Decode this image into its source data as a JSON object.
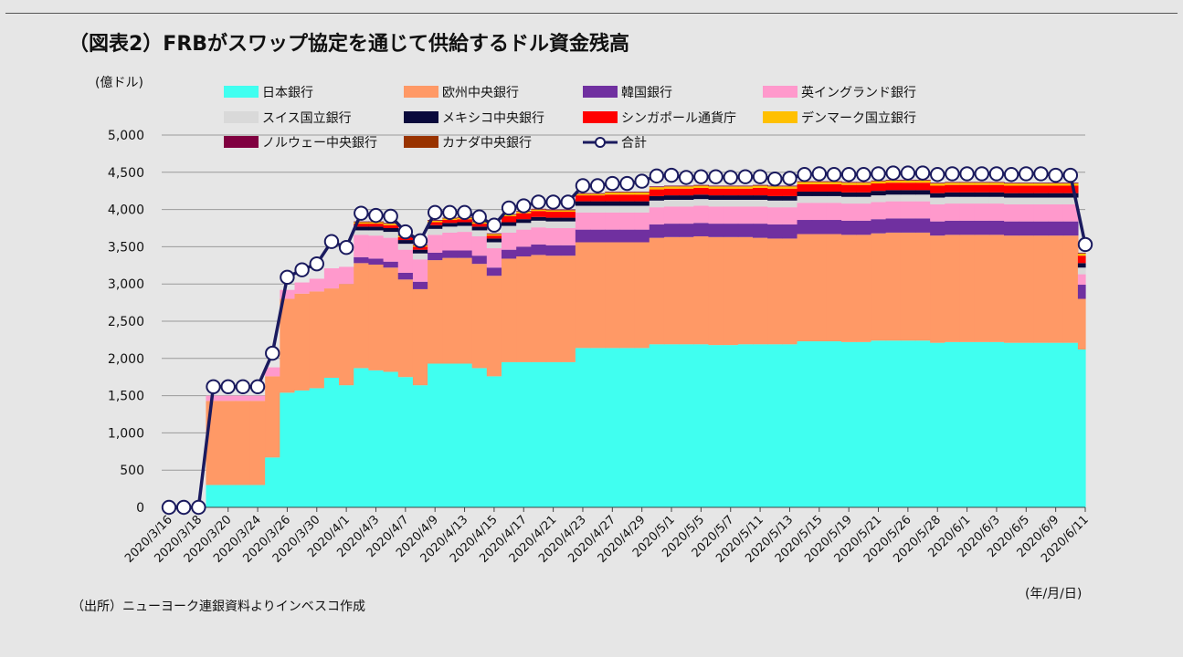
{
  "title": "（図表2）FRBがスワップ協定を通じて供給するドル資金残高",
  "source": "（出所）ニューヨーク連銀資料よりインベスコ作成",
  "chart_data": {
    "type": "area",
    "stacked": true,
    "ylabel": "(億ドル)",
    "xunit": "(年/月/日)",
    "ylim": [
      0,
      5000
    ],
    "yticks": [
      0,
      500,
      1000,
      1500,
      2000,
      2500,
      3000,
      3500,
      4000,
      4500,
      5000
    ],
    "ytick_labels": [
      "0",
      "500",
      "1,000",
      "1,500",
      "2,000",
      "2,500",
      "3,000",
      "3,500",
      "4,000",
      "4,500",
      "5,000"
    ],
    "grid": true,
    "legend_position": "top",
    "x": [
      "2020/3/16",
      "2020/3/17",
      "2020/3/18",
      "2020/3/19",
      "2020/3/20",
      "2020/3/23",
      "2020/3/24",
      "2020/3/25",
      "2020/3/26",
      "2020/3/27",
      "2020/3/30",
      "2020/3/31",
      "2020/4/1",
      "2020/4/2",
      "2020/4/3",
      "2020/4/6",
      "2020/4/7",
      "2020/4/8",
      "2020/4/9",
      "2020/4/10",
      "2020/4/13",
      "2020/4/14",
      "2020/4/15",
      "2020/4/16",
      "2020/4/17",
      "2020/4/20",
      "2020/4/21",
      "2020/4/22",
      "2020/4/23",
      "2020/4/24",
      "2020/4/27",
      "2020/4/28",
      "2020/4/29",
      "2020/4/30",
      "2020/5/1",
      "2020/5/4",
      "2020/5/5",
      "2020/5/6",
      "2020/5/7",
      "2020/5/8",
      "2020/5/11",
      "2020/5/12",
      "2020/5/13",
      "2020/5/14",
      "2020/5/15",
      "2020/5/18",
      "2020/5/19",
      "2020/5/20",
      "2020/5/21",
      "2020/5/22",
      "2020/5/26",
      "2020/5/27",
      "2020/5/28",
      "2020/5/29",
      "2020/6/1",
      "2020/6/2",
      "2020/6/3",
      "2020/6/4",
      "2020/6/5",
      "2020/6/8",
      "2020/6/9",
      "2020/6/10",
      "2020/6/11"
    ],
    "xtick_labels": [
      "2020/3/16",
      "2020/3/18",
      "2020/3/20",
      "2020/3/24",
      "2020/3/26",
      "2020/3/30",
      "2020/4/1",
      "2020/4/3",
      "2020/4/7",
      "2020/4/9",
      "2020/4/13",
      "2020/4/15",
      "2020/4/17",
      "2020/4/21",
      "2020/4/23",
      "2020/4/27",
      "2020/4/29",
      "2020/5/1",
      "2020/5/5",
      "2020/5/7",
      "2020/5/11",
      "2020/5/13",
      "2020/5/15",
      "2020/5/19",
      "2020/5/21",
      "2020/5/26",
      "2020/5/28",
      "2020/6/1",
      "2020/6/3",
      "2020/6/5",
      "2020/6/9",
      "2020/6/11"
    ],
    "series": [
      {
        "name": "日本銀行",
        "color": "#40fff0",
        "values": [
          0,
          0,
          0,
          300,
          300,
          300,
          300,
          670,
          1540,
          1570,
          1600,
          1740,
          1640,
          1870,
          1840,
          1820,
          1750,
          1640,
          1930,
          1930,
          1930,
          1870,
          1760,
          1950,
          1950,
          1950,
          1950,
          1950,
          2140,
          2140,
          2140,
          2140,
          2140,
          2190,
          2190,
          2190,
          2190,
          2180,
          2180,
          2190,
          2190,
          2190,
          2190,
          2230,
          2230,
          2230,
          2220,
          2220,
          2240,
          2240,
          2240,
          2240,
          2210,
          2220,
          2220,
          2220,
          2220,
          2210,
          2210,
          2210,
          2210,
          2210,
          2120
        ]
      },
      {
        "name": "欧州中央銀行",
        "color": "#ff9966",
        "values": [
          0,
          0,
          0,
          1130,
          1130,
          1130,
          1130,
          1090,
          1260,
          1300,
          1300,
          1200,
          1360,
          1410,
          1420,
          1400,
          1310,
          1290,
          1390,
          1420,
          1420,
          1400,
          1350,
          1390,
          1420,
          1440,
          1430,
          1430,
          1420,
          1420,
          1420,
          1420,
          1420,
          1430,
          1440,
          1440,
          1450,
          1450,
          1450,
          1440,
          1430,
          1420,
          1420,
          1440,
          1440,
          1440,
          1440,
          1440,
          1440,
          1450,
          1450,
          1450,
          1440,
          1440,
          1440,
          1440,
          1440,
          1440,
          1440,
          1440,
          1440,
          1440,
          680
        ]
      },
      {
        "name": "韓国銀行",
        "color": "#7030a0",
        "values": [
          0,
          0,
          0,
          0,
          0,
          0,
          0,
          0,
          0,
          0,
          0,
          0,
          0,
          80,
          80,
          80,
          90,
          100,
          100,
          100,
          100,
          110,
          110,
          120,
          130,
          140,
          140,
          140,
          170,
          170,
          170,
          170,
          170,
          180,
          180,
          180,
          180,
          180,
          180,
          180,
          190,
          190,
          190,
          190,
          190,
          190,
          190,
          190,
          190,
          190,
          190,
          190,
          190,
          190,
          190,
          190,
          190,
          190,
          190,
          190,
          190,
          190,
          190
        ]
      },
      {
        "name": "英イングランド銀行",
        "color": "#ff99cc",
        "values": [
          0,
          0,
          0,
          70,
          70,
          70,
          70,
          120,
          120,
          150,
          170,
          270,
          230,
          300,
          310,
          320,
          310,
          300,
          240,
          240,
          250,
          260,
          260,
          230,
          230,
          230,
          230,
          230,
          230,
          230,
          230,
          230,
          230,
          230,
          230,
          230,
          230,
          230,
          230,
          230,
          230,
          230,
          230,
          230,
          230,
          230,
          230,
          230,
          230,
          230,
          230,
          230,
          230,
          230,
          230,
          230,
          230,
          230,
          230,
          230,
          230,
          230,
          140
        ]
      },
      {
        "name": "スイス国立銀行",
        "color": "#d9d9d9",
        "values": [
          0,
          0,
          0,
          0,
          0,
          0,
          0,
          0,
          0,
          0,
          0,
          0,
          0,
          60,
          70,
          80,
          80,
          80,
          80,
          80,
          80,
          80,
          80,
          90,
          90,
          90,
          90,
          90,
          90,
          90,
          90,
          90,
          90,
          90,
          90,
          90,
          90,
          90,
          90,
          90,
          90,
          90,
          90,
          90,
          90,
          90,
          90,
          90,
          90,
          90,
          90,
          90,
          90,
          90,
          90,
          90,
          90,
          90,
          90,
          90,
          90,
          90,
          90
        ]
      },
      {
        "name": "メキシコ中央銀行",
        "color": "#0a0a3c",
        "values": [
          0,
          0,
          0,
          0,
          0,
          0,
          0,
          0,
          0,
          0,
          0,
          0,
          0,
          50,
          50,
          50,
          50,
          50,
          50,
          50,
          50,
          50,
          50,
          50,
          50,
          50,
          50,
          50,
          60,
          60,
          60,
          60,
          60,
          60,
          60,
          60,
          60,
          60,
          60,
          60,
          60,
          60,
          60,
          60,
          60,
          60,
          60,
          60,
          60,
          60,
          60,
          60,
          60,
          60,
          60,
          60,
          60,
          60,
          60,
          60,
          60,
          60,
          60
        ]
      },
      {
        "name": "シンガポール通貨庁",
        "color": "#ff0000",
        "values": [
          0,
          0,
          0,
          0,
          0,
          0,
          0,
          0,
          0,
          0,
          0,
          0,
          0,
          40,
          40,
          40,
          40,
          40,
          40,
          40,
          40,
          40,
          40,
          80,
          80,
          80,
          80,
          80,
          80,
          80,
          90,
          90,
          90,
          90,
          90,
          90,
          90,
          90,
          90,
          90,
          100,
          100,
          100,
          100,
          100,
          100,
          100,
          100,
          100,
          100,
          100,
          100,
          100,
          100,
          100,
          100,
          100,
          100,
          100,
          100,
          100,
          100,
          100
        ]
      },
      {
        "name": "デンマーク国立銀行",
        "color": "#ffc000",
        "values": [
          0,
          0,
          0,
          0,
          0,
          0,
          0,
          0,
          0,
          0,
          0,
          0,
          0,
          20,
          20,
          20,
          20,
          20,
          20,
          20,
          20,
          20,
          20,
          20,
          20,
          20,
          20,
          20,
          20,
          20,
          30,
          30,
          30,
          30,
          30,
          30,
          30,
          30,
          30,
          30,
          30,
          30,
          30,
          30,
          30,
          30,
          30,
          30,
          30,
          30,
          30,
          30,
          30,
          30,
          30,
          30,
          30,
          30,
          30,
          30,
          30,
          30,
          30
        ]
      },
      {
        "name": "ノルウェー中央銀行",
        "color": "#800040",
        "values": [
          0,
          0,
          0,
          0,
          0,
          0,
          0,
          0,
          0,
          0,
          0,
          0,
          0,
          10,
          10,
          10,
          10,
          10,
          10,
          10,
          10,
          10,
          10,
          10,
          10,
          10,
          10,
          10,
          10,
          10,
          10,
          10,
          10,
          10,
          10,
          10,
          10,
          10,
          10,
          10,
          10,
          10,
          10,
          10,
          10,
          10,
          10,
          10,
          10,
          10,
          10,
          10,
          10,
          10,
          10,
          10,
          10,
          10,
          10,
          10,
          10,
          10,
          10
        ]
      },
      {
        "name": "カナダ中央銀行",
        "color": "#993300",
        "values": [
          0,
          0,
          0,
          0,
          0,
          0,
          0,
          0,
          0,
          0,
          0,
          0,
          0,
          0,
          0,
          0,
          0,
          0,
          0,
          0,
          0,
          0,
          0,
          0,
          0,
          0,
          0,
          0,
          0,
          0,
          0,
          0,
          0,
          0,
          0,
          0,
          0,
          0,
          0,
          0,
          0,
          0,
          0,
          0,
          0,
          0,
          0,
          0,
          0,
          0,
          0,
          0,
          0,
          0,
          0,
          0,
          0,
          0,
          0,
          0,
          0,
          0,
          0
        ]
      }
    ],
    "total": {
      "name": "合計",
      "color": "#1a1a5e",
      "values": [
        0,
        0,
        0,
        1620,
        1620,
        1620,
        1620,
        2070,
        3090,
        3190,
        3270,
        3570,
        3490,
        3950,
        3920,
        3910,
        3700,
        3580,
        3960,
        3960,
        3960,
        3900,
        3790,
        4020,
        4050,
        4100,
        4100,
        4100,
        4320,
        4320,
        4350,
        4350,
        4380,
        4450,
        4460,
        4430,
        4440,
        4440,
        4430,
        4440,
        4440,
        4410,
        4420,
        4470,
        4480,
        4470,
        4470,
        4470,
        4480,
        4490,
        4490,
        4490,
        4470,
        4480,
        4480,
        4480,
        4480,
        4470,
        4480,
        4480,
        4460,
        4460,
        3530
      ]
    }
  }
}
